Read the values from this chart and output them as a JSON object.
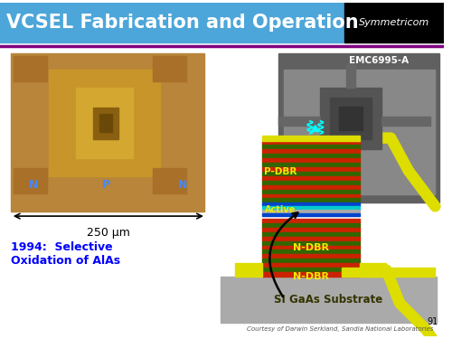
{
  "title": "VCSEL Fabrication and Operation",
  "title_bg": "#4da6d9",
  "title_color": "#ffffff",
  "title_fontsize": 15,
  "logo_bg": "#000000",
  "logo_text": "Symmetricom",
  "separator_color": "#800080",
  "slide_bg": "#ffffff",
  "page_number": "91",
  "emc_label": "EMC6995-A",
  "scale_label": "250 μm",
  "text_1994": "1994:  Selective\nOxidation of AlAs",
  "substrate_label": "SI GaAs Substrate",
  "ndbr_label": "N-DBR",
  "pdbr_label": "P-DBR",
  "active_label": "Active",
  "n_label": "N",
  "p_label": "P",
  "courtesy_text": "Courtesy of Darwin Serkland, Sandia National Laboratories",
  "colors": {
    "red": "#cc2200",
    "green": "#336600",
    "yellow_stripe": "#cccc00",
    "substrate_gray": "#aaaaaa",
    "yellow_contact": "#dddd00",
    "active_cyan": "#00cccc",
    "active_blue": "#0044cc",
    "active_gray": "#aaaaaa"
  }
}
